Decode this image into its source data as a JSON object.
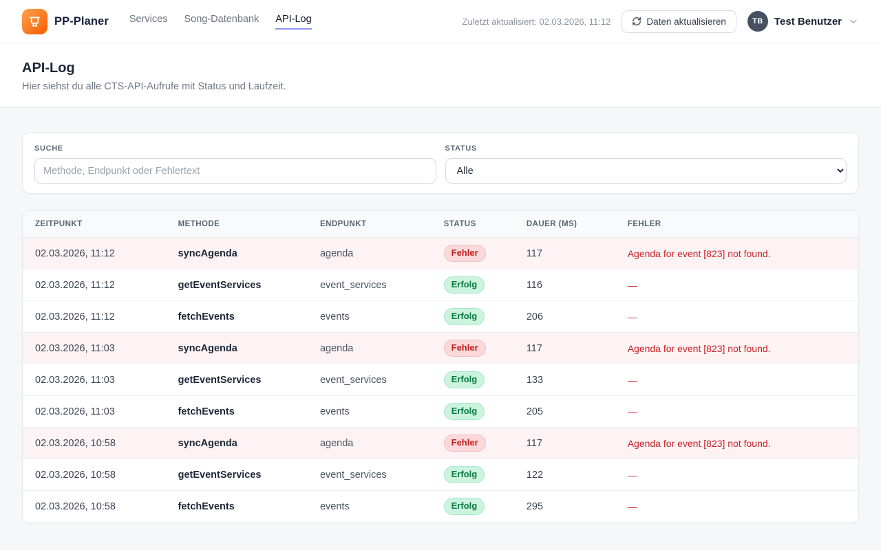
{
  "brand": {
    "name": "PP-Planer"
  },
  "nav": {
    "items": [
      {
        "label": "Services",
        "active": false
      },
      {
        "label": "Song-Datenbank",
        "active": false
      },
      {
        "label": "API-Log",
        "active": true
      }
    ]
  },
  "header": {
    "last_updated": "Zuletzt aktualisiert: 02.03.2026, 11:12",
    "refresh_label": "Daten aktualisieren",
    "user": {
      "initials": "TB",
      "name": "Test Benutzer"
    }
  },
  "page": {
    "title": "API-Log",
    "subtitle": "Hier siehst du alle CTS-API-Aufrufe mit Status und Laufzeit."
  },
  "filters": {
    "search": {
      "label": "SUCHE",
      "placeholder": "Methode, Endpunkt oder Fehlertext",
      "value": ""
    },
    "status": {
      "label": "STATUS",
      "selected": "Alle"
    }
  },
  "badges": {
    "error_label": "Fehler",
    "success_label": "Erfolg"
  },
  "table": {
    "columns": [
      "ZEITPUNKT",
      "METHODE",
      "ENDPUNKT",
      "STATUS",
      "DAUER (MS)",
      "FEHLER"
    ],
    "rows": [
      {
        "zeitpunkt": "02.03.2026, 11:12",
        "methode": "syncAgenda",
        "endpunkt": "agenda",
        "status": "Fehler",
        "dauer": "117",
        "fehler": "Agenda for event [823] not found."
      },
      {
        "zeitpunkt": "02.03.2026, 11:12",
        "methode": "getEventServices",
        "endpunkt": "event_services",
        "status": "Erfolg",
        "dauer": "116",
        "fehler": "—"
      },
      {
        "zeitpunkt": "02.03.2026, 11:12",
        "methode": "fetchEvents",
        "endpunkt": "events",
        "status": "Erfolg",
        "dauer": "206",
        "fehler": "—"
      },
      {
        "zeitpunkt": "02.03.2026, 11:03",
        "methode": "syncAgenda",
        "endpunkt": "agenda",
        "status": "Fehler",
        "dauer": "117",
        "fehler": "Agenda for event [823] not found."
      },
      {
        "zeitpunkt": "02.03.2026, 11:03",
        "methode": "getEventServices",
        "endpunkt": "event_services",
        "status": "Erfolg",
        "dauer": "133",
        "fehler": "—"
      },
      {
        "zeitpunkt": "02.03.2026, 11:03",
        "methode": "fetchEvents",
        "endpunkt": "events",
        "status": "Erfolg",
        "dauer": "205",
        "fehler": "—"
      },
      {
        "zeitpunkt": "02.03.2026, 10:58",
        "methode": "syncAgenda",
        "endpunkt": "agenda",
        "status": "Fehler",
        "dauer": "117",
        "fehler": "Agenda for event [823] not found."
      },
      {
        "zeitpunkt": "02.03.2026, 10:58",
        "methode": "getEventServices",
        "endpunkt": "event_services",
        "status": "Erfolg",
        "dauer": "122",
        "fehler": "—"
      },
      {
        "zeitpunkt": "02.03.2026, 10:58",
        "methode": "fetchEvents",
        "endpunkt": "events",
        "status": "Erfolg",
        "dauer": "295",
        "fehler": "—"
      }
    ]
  },
  "colors": {
    "accent_orange": "#f96a10",
    "nav_underline": "#8b93f8",
    "error_text": "#c01f1f",
    "error_row_bg": "#fdf3f4",
    "success_text": "#0b7a46"
  }
}
